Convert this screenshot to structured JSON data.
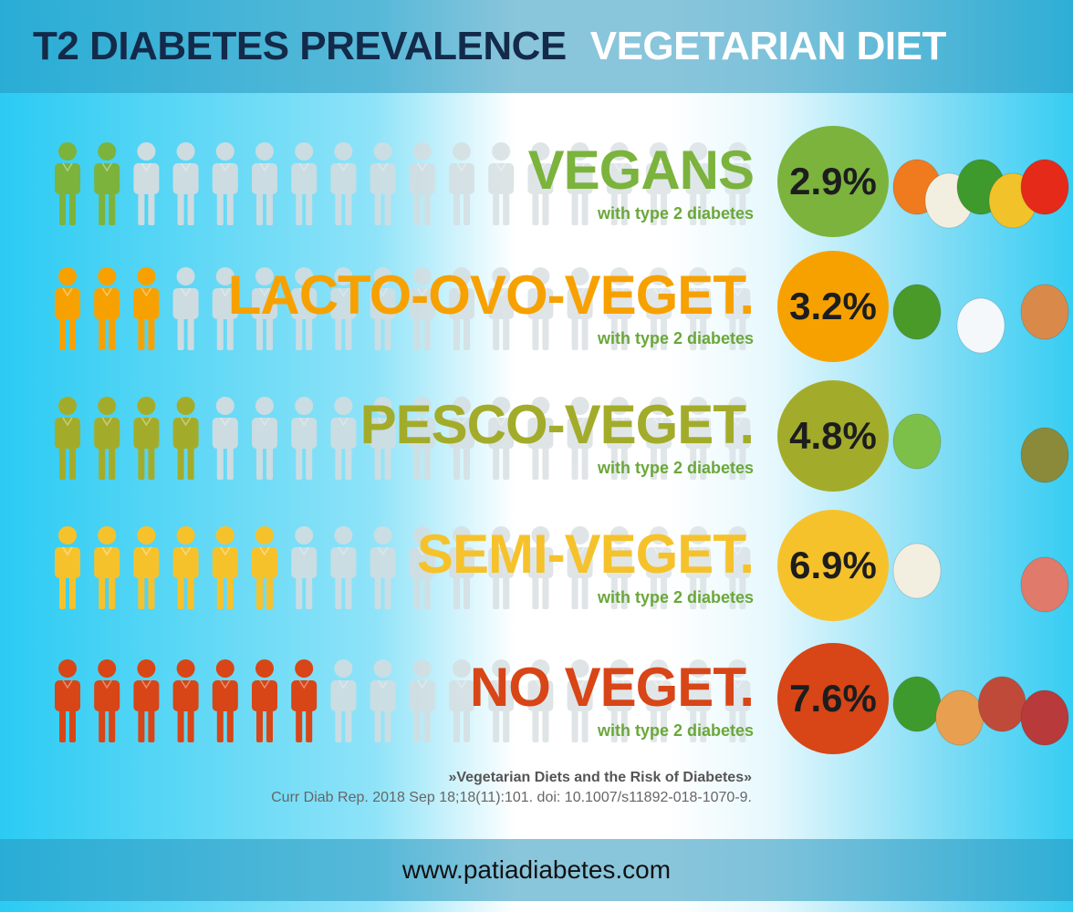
{
  "header": {
    "title_dark": "T2 DIABETES PREVALENCE",
    "title_light": "VEGETARIAN DIET"
  },
  "chart_data": {
    "type": "pictograph",
    "icons_per_row": 18,
    "series": [
      {
        "name": "VEGANS",
        "sub": "with type 2 diabetes",
        "value": "2.9%",
        "prevalence": 2.9,
        "highlighted_icons": 2,
        "color": "#7bb33d",
        "foods": [
          "carrot",
          "cauliflower",
          "spinach",
          "corn",
          "tomato"
        ]
      },
      {
        "name": "LACTO-OVO-VEGET.",
        "sub": "with type 2 diabetes",
        "value": "3.2%",
        "prevalence": 3.2,
        "highlighted_icons": 3,
        "color": "#f7a100",
        "foods": [
          "broccoli",
          "milk-bottle",
          "eggs"
        ]
      },
      {
        "name": "PESCO-VEGET.",
        "sub": "with type 2 diabetes",
        "value": "4.8%",
        "prevalence": 4.8,
        "highlighted_icons": 4,
        "color": "#a3ac2a",
        "foods": [
          "cabbage",
          "fish"
        ]
      },
      {
        "name": "SEMI-VEGET.",
        "sub": "with type 2 diabetes",
        "value": "6.9%",
        "prevalence": 6.9,
        "highlighted_icons": 6,
        "color": "#f6c22b",
        "foods": [
          "cauliflower",
          "ham"
        ]
      },
      {
        "name": "NO VEGET.",
        "sub": "with type 2 diabetes",
        "value": "7.6%",
        "prevalence": 7.6,
        "highlighted_icons": 7,
        "color": "#d84516",
        "foods": [
          "spinach",
          "bread",
          "sausage",
          "steak"
        ]
      }
    ]
  },
  "citation": {
    "title": "»Vegetarian Diets and the Risk of Diabetes»",
    "ref": "Curr Diab Rep. 2018 Sep 18;18(11):101. doi: 10.1007/s11892-018-1070-9."
  },
  "footer": {
    "url": "www.patiadiabetes.com"
  },
  "colors": {
    "inactive_icon": "#d5dde0",
    "header_band": "#2896be"
  }
}
